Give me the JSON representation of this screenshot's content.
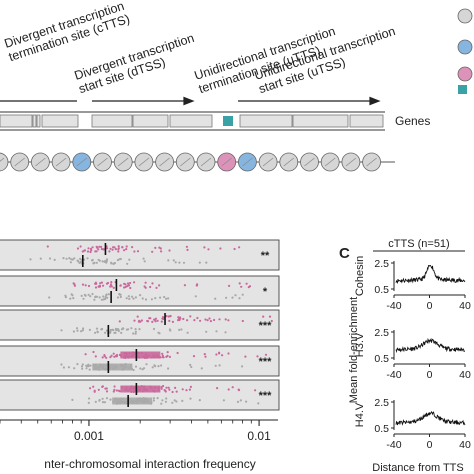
{
  "top": {
    "site_labels": {
      "ctts": [
        "Divergent transcription",
        "termination site (cTTS)"
      ],
      "dtss": [
        "Divergent transcription",
        "start site (dTSS)"
      ],
      "utts": [
        "Unidirectional transcription",
        "termination site (uTTS)"
      ],
      "utss": [
        "Unidirectional transcription",
        "start site (uTSS)"
      ]
    },
    "genes_label": "Genes"
  },
  "panel_c": {
    "letter": "C",
    "header": "cTTS (n=51)",
    "y_axis_label": "Mean fold-enrichment",
    "x_axis_label": "Distance from TTS",
    "tracks": [
      {
        "name": "Cohesin",
        "yticks": [
          "2.5",
          "0.5"
        ]
      },
      {
        "name": "H3.V",
        "yticks": [
          "2.5",
          "0.5"
        ]
      },
      {
        "name": "H4.V",
        "yticks": [
          "2.5",
          "0.5"
        ]
      }
    ],
    "xticks": [
      "-40",
      "0",
      "40"
    ]
  },
  "chart_data": {
    "type": "scatter",
    "xlabel": "nter-chromosomal interaction frequency",
    "xscale": "log",
    "xticks": [
      "0.001",
      "0.01"
    ],
    "xlim": [
      0.0003,
      0.05
    ],
    "series_colors": {
      "pink": "#c9689b",
      "gray": "#a8a8a8",
      "median": "#111111"
    },
    "rows": [
      {
        "significance": "**",
        "pink_median": 0.00125,
        "gray_median": 0.00092
      },
      {
        "significance": "*",
        "pink_median": 0.00145,
        "gray_median": 0.00135
      },
      {
        "significance": "***",
        "pink_median": 0.0028,
        "gray_median": 0.0013
      },
      {
        "significance": "***",
        "pink_median": 0.0019,
        "gray_median": 0.0013
      },
      {
        "significance": "***",
        "pink_median": 0.0019,
        "gray_median": 0.0017
      }
    ]
  }
}
